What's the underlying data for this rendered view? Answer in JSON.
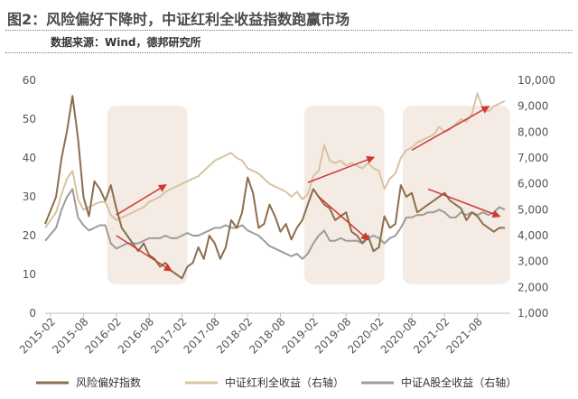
{
  "header": {
    "title": "图2：风险偏好下降时，中证红利全收益指数跑赢市场",
    "source": "数据来源：Wind，德邦研究所"
  },
  "colors": {
    "risk": "#8c6e4c",
    "dividend": "#d9c3a1",
    "ashare": "#9c9c9c",
    "arrow": "#cc3a34",
    "shade": "#f2e7df",
    "title": "#4a4a4a"
  },
  "chart_data": {
    "type": "line",
    "x_ticks": [
      "2015-02",
      "2015-08",
      "2016-02",
      "2016-08",
      "2017-02",
      "2017-08",
      "2018-02",
      "2018-08",
      "2019-02",
      "2019-08",
      "2020-02",
      "2020-08",
      "2021-02",
      "2021-08"
    ],
    "x_range": [
      "2015-01",
      "2022-02"
    ],
    "y_left": {
      "range": [
        0,
        60
      ],
      "ticks": [
        0,
        10,
        20,
        30,
        40,
        50,
        60
      ]
    },
    "y_right": {
      "range": [
        1000,
        10000
      ],
      "ticks": [
        "1,000",
        "2,000",
        "3,000",
        "4,000",
        "5,000",
        "6,000",
        "7,000",
        "8,000",
        "9,000",
        "10,000"
      ]
    },
    "grid": false,
    "legend_position": "bottom",
    "series": [
      {
        "name": "风险偏好指数",
        "axis": "left",
        "style": "dark-brown",
        "x": [
          "2015-01",
          "2015-03",
          "2015-04",
          "2015-05",
          "2015-06",
          "2015-07",
          "2015-08",
          "2015-09",
          "2015-10",
          "2015-11",
          "2015-12",
          "2016-01",
          "2016-02",
          "2016-03",
          "2016-04",
          "2016-05",
          "2016-06",
          "2016-07",
          "2016-08",
          "2016-09",
          "2016-10",
          "2016-11",
          "2016-12",
          "2017-01",
          "2017-02",
          "2017-03",
          "2017-04",
          "2017-05",
          "2017-06",
          "2017-07",
          "2017-08",
          "2017-09",
          "2017-10",
          "2017-11",
          "2017-12",
          "2018-01",
          "2018-02",
          "2018-03",
          "2018-04",
          "2018-05",
          "2018-06",
          "2018-07",
          "2018-08",
          "2018-09",
          "2018-10",
          "2018-11",
          "2018-12",
          "2019-01",
          "2019-02",
          "2019-03",
          "2019-04",
          "2019-05",
          "2019-06",
          "2019-07",
          "2019-08",
          "2019-09",
          "2019-10",
          "2019-11",
          "2019-12",
          "2020-01",
          "2020-02",
          "2020-03",
          "2020-04",
          "2020-05",
          "2020-06",
          "2020-07",
          "2020-08",
          "2020-09",
          "2020-10",
          "2020-11",
          "2020-12",
          "2021-01",
          "2021-02",
          "2021-03",
          "2021-04",
          "2021-05",
          "2021-06",
          "2021-07",
          "2021-08",
          "2021-09",
          "2021-10",
          "2021-11",
          "2021-12",
          "2022-01"
        ],
        "values": [
          23,
          30,
          40,
          47,
          56,
          45,
          30,
          25,
          34,
          32,
          29,
          33,
          27,
          22,
          20,
          18,
          16,
          18,
          15,
          14,
          12,
          13,
          11,
          10,
          9,
          12,
          13,
          17,
          14,
          20,
          18,
          14,
          17,
          24,
          22,
          26,
          35,
          31,
          22,
          23,
          28,
          25,
          21,
          23,
          19,
          22,
          24,
          28,
          32,
          30,
          28,
          27,
          24,
          25,
          26,
          21,
          20,
          18,
          20,
          16,
          17,
          25,
          22,
          23,
          33,
          30,
          31,
          26,
          27,
          28,
          29,
          30,
          31,
          29,
          28,
          27,
          24,
          26,
          25,
          23,
          22,
          21,
          22,
          22
        ]
      },
      {
        "name": "中证红利全收益（右轴）",
        "axis": "right",
        "style": "light-tan",
        "x": [
          "2015-01",
          "2015-03",
          "2015-04",
          "2015-05",
          "2015-06",
          "2015-07",
          "2015-08",
          "2015-09",
          "2015-10",
          "2015-11",
          "2015-12",
          "2016-01",
          "2016-02",
          "2016-03",
          "2016-04",
          "2016-05",
          "2016-06",
          "2016-07",
          "2016-08",
          "2016-09",
          "2016-10",
          "2016-11",
          "2016-12",
          "2017-01",
          "2017-02",
          "2017-03",
          "2017-04",
          "2017-05",
          "2017-06",
          "2017-07",
          "2017-08",
          "2017-09",
          "2017-10",
          "2017-11",
          "2017-12",
          "2018-01",
          "2018-02",
          "2018-03",
          "2018-04",
          "2018-05",
          "2018-06",
          "2018-07",
          "2018-08",
          "2018-09",
          "2018-10",
          "2018-11",
          "2018-12",
          "2019-01",
          "2019-02",
          "2019-03",
          "2019-04",
          "2019-05",
          "2019-06",
          "2019-07",
          "2019-08",
          "2019-09",
          "2019-10",
          "2019-11",
          "2019-12",
          "2020-01",
          "2020-02",
          "2020-03",
          "2020-04",
          "2020-05",
          "2020-06",
          "2020-07",
          "2020-08",
          "2020-09",
          "2020-10",
          "2020-11",
          "2020-12",
          "2021-01",
          "2021-02",
          "2021-03",
          "2021-04",
          "2021-05",
          "2021-06",
          "2021-07",
          "2021-08",
          "2021-09",
          "2021-10",
          "2021-11",
          "2021-12",
          "2022-01"
        ],
        "values": [
          4300,
          4900,
          5600,
          6200,
          6500,
          5400,
          5000,
          5100,
          5200,
          5300,
          5300,
          4800,
          4600,
          4700,
          4800,
          4900,
          5000,
          5100,
          5300,
          5400,
          5500,
          5700,
          5800,
          5900,
          6000,
          6100,
          6200,
          6300,
          6500,
          6700,
          6900,
          7000,
          7100,
          7200,
          7000,
          6900,
          6600,
          6500,
          6400,
          6200,
          6000,
          5900,
          5800,
          5700,
          5500,
          5700,
          5400,
          5600,
          6300,
          6500,
          7500,
          6900,
          6800,
          6900,
          6700,
          6800,
          6700,
          6600,
          6800,
          6600,
          6500,
          5800,
          6200,
          6400,
          7000,
          7300,
          7400,
          7600,
          7700,
          7800,
          7900,
          8200,
          8000,
          8100,
          8300,
          8500,
          8400,
          8700,
          9500,
          8900,
          8800,
          9000,
          9100,
          9200
        ]
      },
      {
        "name": "中证A股全收益（右轴）",
        "axis": "right",
        "style": "grey",
        "x": [
          "2015-01",
          "2015-03",
          "2015-04",
          "2015-05",
          "2015-06",
          "2015-07",
          "2015-08",
          "2015-09",
          "2015-10",
          "2015-11",
          "2015-12",
          "2016-01",
          "2016-02",
          "2016-03",
          "2016-04",
          "2016-05",
          "2016-06",
          "2016-07",
          "2016-08",
          "2016-09",
          "2016-10",
          "2016-11",
          "2016-12",
          "2017-01",
          "2017-02",
          "2017-03",
          "2017-04",
          "2017-05",
          "2017-06",
          "2017-07",
          "2017-08",
          "2017-09",
          "2017-10",
          "2017-11",
          "2017-12",
          "2018-01",
          "2018-02",
          "2018-03",
          "2018-04",
          "2018-05",
          "2018-06",
          "2018-07",
          "2018-08",
          "2018-09",
          "2018-10",
          "2018-11",
          "2018-12",
          "2019-01",
          "2019-02",
          "2019-03",
          "2019-04",
          "2019-05",
          "2019-06",
          "2019-07",
          "2019-08",
          "2019-09",
          "2019-10",
          "2019-11",
          "2019-12",
          "2020-01",
          "2020-02",
          "2020-03",
          "2020-04",
          "2020-05",
          "2020-06",
          "2020-07",
          "2020-08",
          "2020-09",
          "2020-10",
          "2020-11",
          "2020-12",
          "2021-01",
          "2021-02",
          "2021-03",
          "2021-04",
          "2021-05",
          "2021-06",
          "2021-07",
          "2021-08",
          "2021-09",
          "2021-10",
          "2021-11",
          "2021-12",
          "2022-01"
        ],
        "values": [
          3800,
          4300,
          5000,
          5500,
          5800,
          4700,
          4400,
          4200,
          4300,
          4400,
          4400,
          3700,
          3500,
          3600,
          3700,
          3700,
          3700,
          3800,
          3900,
          3900,
          3900,
          4000,
          3900,
          3900,
          4000,
          4100,
          4000,
          4000,
          4100,
          4200,
          4300,
          4300,
          4400,
          4300,
          4300,
          4400,
          4200,
          4100,
          4000,
          3800,
          3600,
          3500,
          3400,
          3300,
          3200,
          3300,
          3100,
          3300,
          3700,
          4000,
          4200,
          3800,
          3800,
          3900,
          3800,
          3800,
          3800,
          3700,
          3900,
          4000,
          3900,
          3700,
          3900,
          4000,
          4300,
          4700,
          4700,
          4800,
          4800,
          4900,
          4900,
          5000,
          4900,
          4700,
          4700,
          4900,
          4800,
          4900,
          4800,
          4900,
          4800,
          4900,
          5100,
          5000
        ]
      }
    ],
    "annotations": {
      "shaded_periods": [
        [
          "2016-02",
          "2017-02"
        ],
        [
          "2019-02",
          "2020-02"
        ],
        [
          "2020-08",
          "2022-01"
        ]
      ],
      "arrows": [
        {
          "axis": "right",
          "from": [
            "2016-02",
            4800
          ],
          "to": [
            "2016-11",
            5950
          ]
        },
        {
          "axis": "left",
          "from": [
            "2016-02",
            20
          ],
          "to": [
            "2016-12",
            11
          ]
        },
        {
          "axis": "right",
          "from": [
            "2019-01",
            6050
          ],
          "to": [
            "2020-01",
            7020
          ]
        },
        {
          "axis": "left",
          "from": [
            "2019-03",
            30
          ],
          "to": [
            "2019-12",
            19
          ]
        },
        {
          "axis": "right",
          "from": [
            "2020-08",
            7300
          ],
          "to": [
            "2021-10",
            8980
          ]
        },
        {
          "axis": "left",
          "from": [
            "2020-11",
            32
          ],
          "to": [
            "2021-12",
            25
          ]
        }
      ]
    }
  }
}
